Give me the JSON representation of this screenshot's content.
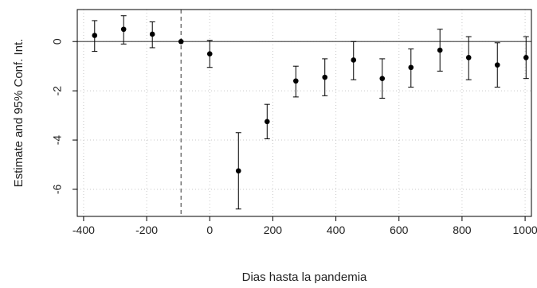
{
  "chart_data": {
    "type": "scatter",
    "title": "",
    "xlabel": "Dias hasta la pandemia",
    "ylabel": "Estimate and 95% Conf. Int.",
    "xlim": [
      -420,
      1020
    ],
    "ylim": [
      -7.1,
      1.3
    ],
    "xticks": [
      -400,
      -200,
      0,
      200,
      400,
      600,
      800,
      1000
    ],
    "yticks": [
      0,
      -2,
      -4,
      -6
    ],
    "grid": true,
    "reference_vline_x": -91,
    "reference_hline_y": 0,
    "series": [
      {
        "x": [
          -365,
          -273,
          -182,
          -91,
          0,
          91,
          182,
          273,
          365,
          456,
          547,
          638,
          730,
          821,
          912,
          1003
        ],
        "estimate": [
          0.25,
          0.5,
          0.3,
          0.0,
          -0.5,
          -5.25,
          -3.25,
          -1.6,
          -1.45,
          -0.75,
          -1.5,
          -1.05,
          -0.35,
          -0.65,
          -0.95,
          -0.65
        ],
        "ci_low": [
          -0.4,
          -0.1,
          -0.25,
          0.0,
          -1.05,
          -6.8,
          -3.95,
          -2.25,
          -2.2,
          -1.55,
          -2.3,
          -1.85,
          -1.2,
          -1.55,
          -1.85,
          -1.5
        ],
        "ci_high": [
          0.85,
          1.05,
          0.8,
          0.0,
          0.05,
          -3.7,
          -2.55,
          -1.0,
          -0.7,
          0.0,
          -0.7,
          -0.3,
          0.5,
          0.2,
          -0.05,
          0.2
        ]
      }
    ]
  },
  "colors": {
    "points": "#000000",
    "grid": "#c8c8c8",
    "axis": "#000000",
    "reference": "#555555"
  }
}
